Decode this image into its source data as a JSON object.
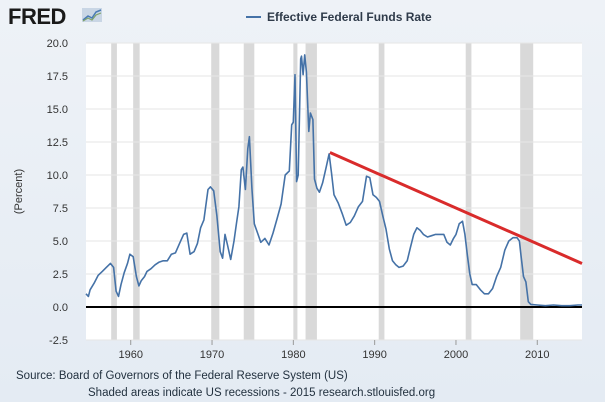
{
  "brand": {
    "logo_text": "FRED",
    "logo_icon": "fred-chart-icon"
  },
  "colors": {
    "series": "#4572a7",
    "trend": "#d92b2b",
    "recession": "#d9d9d9",
    "zero_line": "#000000",
    "plot_bg": "#ffffff"
  },
  "footer": {
    "source": "Source: Board of Governors of the Federal Reserve System (US)",
    "notes": "Shaded areas indicate US recessions - 2015 research.stlouisfed.org"
  },
  "chart_data": {
    "type": "line",
    "title": "",
    "xlabel": "",
    "ylabel": "(Percent)",
    "xlim": [
      1954.5,
      2015.5
    ],
    "ylim": [
      -2.5,
      20.0
    ],
    "x_ticks": [
      1960,
      1970,
      1980,
      1990,
      2000,
      2010
    ],
    "y_ticks": [
      -2.5,
      0.0,
      2.5,
      5.0,
      7.5,
      10.0,
      12.5,
      15.0,
      17.5,
      20.0
    ],
    "y_tick_labels": [
      "-2.5",
      "0.0",
      "2.5",
      "5.0",
      "7.5",
      "10.0",
      "12.5",
      "15.0",
      "17.5",
      "20.0"
    ],
    "legend": {
      "position": "top-center",
      "entries": [
        "Effective Federal Funds Rate"
      ]
    },
    "series": [
      {
        "name": "Effective Federal Funds Rate",
        "x": [
          1954.5,
          1954.8,
          1955.0,
          1955.5,
          1956.0,
          1956.5,
          1957.0,
          1957.5,
          1957.9,
          1958.2,
          1958.5,
          1958.8,
          1959.2,
          1959.6,
          1959.9,
          1960.3,
          1960.7,
          1961.0,
          1961.3,
          1961.7,
          1962.0,
          1962.5,
          1963.0,
          1963.5,
          1964.0,
          1964.5,
          1965.0,
          1965.5,
          1966.0,
          1966.5,
          1966.9,
          1967.3,
          1967.8,
          1968.2,
          1968.6,
          1969.0,
          1969.5,
          1969.8,
          1970.2,
          1970.6,
          1971.0,
          1971.3,
          1971.6,
          1971.9,
          1972.3,
          1972.7,
          1973.0,
          1973.3,
          1973.6,
          1973.8,
          1974.1,
          1974.4,
          1974.6,
          1974.9,
          1975.2,
          1975.6,
          1976.0,
          1976.5,
          1977.0,
          1977.5,
          1978.0,
          1978.5,
          1979.0,
          1979.5,
          1979.8,
          1980.0,
          1980.2,
          1980.4,
          1980.6,
          1980.9,
          1981.0,
          1981.2,
          1981.4,
          1981.6,
          1981.9,
          1982.1,
          1982.4,
          1982.6,
          1982.9,
          1983.2,
          1983.6,
          1984.0,
          1984.4,
          1984.7,
          1985.0,
          1985.5,
          1986.0,
          1986.5,
          1987.0,
          1987.5,
          1988.0,
          1988.5,
          1989.0,
          1989.4,
          1989.8,
          1990.2,
          1990.6,
          1991.0,
          1991.4,
          1991.8,
          1992.2,
          1992.6,
          1993.0,
          1993.5,
          1994.0,
          1994.4,
          1994.8,
          1995.2,
          1995.6,
          1996.0,
          1996.5,
          1997.0,
          1997.5,
          1998.0,
          1998.5,
          1998.9,
          1999.3,
          1999.7,
          2000.0,
          2000.4,
          2000.8,
          2001.1,
          2001.4,
          2001.7,
          2002.0,
          2002.5,
          2003.0,
          2003.5,
          2004.0,
          2004.5,
          2005.0,
          2005.5,
          2006.0,
          2006.5,
          2007.0,
          2007.5,
          2007.8,
          2008.0,
          2008.3,
          2008.6,
          2008.9,
          2009.2,
          2010.0,
          2011.0,
          2012.0,
          2013.0,
          2014.0,
          2015.0,
          2015.5
        ],
        "values": [
          1.0,
          0.8,
          1.3,
          1.8,
          2.4,
          2.7,
          3.0,
          3.3,
          3.0,
          1.2,
          0.8,
          1.7,
          2.6,
          3.3,
          4.0,
          3.8,
          2.3,
          1.6,
          2.0,
          2.3,
          2.7,
          2.9,
          3.2,
          3.4,
          3.5,
          3.5,
          4.0,
          4.1,
          4.8,
          5.5,
          5.6,
          4.0,
          4.2,
          4.8,
          6.0,
          6.6,
          8.9,
          9.1,
          8.8,
          6.9,
          4.2,
          3.7,
          5.5,
          4.7,
          3.6,
          5.0,
          6.3,
          7.6,
          10.4,
          10.6,
          8.9,
          12.0,
          12.9,
          9.0,
          6.3,
          5.6,
          4.9,
          5.2,
          4.7,
          5.6,
          6.7,
          7.8,
          10.0,
          10.3,
          13.8,
          14.0,
          17.6,
          9.5,
          10.0,
          18.8,
          19.0,
          17.6,
          19.1,
          17.8,
          13.3,
          14.7,
          14.2,
          9.7,
          9.0,
          8.7,
          9.4,
          10.5,
          11.6,
          10.1,
          8.5,
          7.9,
          7.1,
          6.2,
          6.4,
          6.9,
          7.6,
          8.0,
          9.9,
          9.8,
          8.5,
          8.3,
          8.0,
          6.9,
          5.9,
          4.4,
          3.5,
          3.2,
          3.0,
          3.1,
          3.5,
          4.5,
          5.5,
          6.0,
          5.8,
          5.5,
          5.3,
          5.4,
          5.5,
          5.5,
          5.5,
          4.9,
          4.7,
          5.2,
          5.5,
          6.3,
          6.5,
          5.5,
          3.9,
          2.5,
          1.7,
          1.7,
          1.3,
          1.0,
          1.0,
          1.4,
          2.3,
          3.0,
          4.3,
          5.0,
          5.25,
          5.25,
          5.0,
          3.9,
          2.3,
          1.9,
          0.4,
          0.2,
          0.15,
          0.1,
          0.15,
          0.1,
          0.1,
          0.15,
          0.15
        ]
      }
    ],
    "recessions": [
      [
        1957.6,
        1958.3
      ],
      [
        1960.3,
        1961.1
      ],
      [
        1969.9,
        1970.9
      ],
      [
        1973.9,
        1975.2
      ],
      [
        1980.0,
        1980.5
      ],
      [
        1981.5,
        1982.9
      ],
      [
        1990.5,
        1991.2
      ],
      [
        2001.2,
        2001.9
      ],
      [
        2007.9,
        2009.5
      ]
    ],
    "trend_line": {
      "start": [
        1984.5,
        11.7
      ],
      "end": [
        2015.5,
        3.3
      ]
    }
  }
}
